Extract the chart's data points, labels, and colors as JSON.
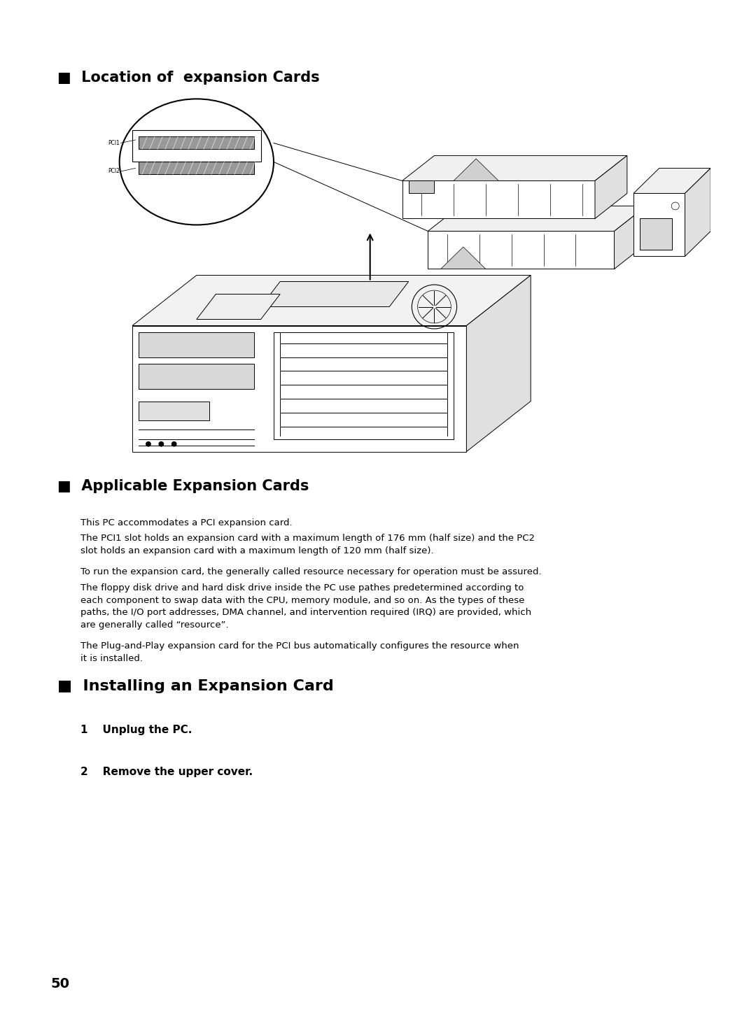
{
  "bg_color": "#ffffff",
  "section1_title": "■  Location of  expansion Cards",
  "section2_title": "■  Applicable Expansion Cards",
  "section3_title": "■  Installing an Expansion Card",
  "section2_body": [
    "This PC accommodates a PCI expansion card.",
    "The PCI1 slot holds an expansion card with a maximum length of 176 mm (half size) and the PC2\nslot holds an expansion card with a maximum length of 120 mm (half size).",
    "To run the expansion card, the generally called resource necessary for operation must be assured.",
    "The floppy disk drive and hard disk drive inside the PC use pathes predetermined according to\neach component to swap data with the CPU, memory module, and so on. As the types of these\npaths, the I/O port addresses, DMA channel, and intervention required (IRQ) are provided, which\nare generally called “resource”.",
    "The Plug-and-Play expansion card for the PCI bus automatically configures the resource when\nit is installed."
  ],
  "section3_steps": [
    "1    Unplug the PC.",
    "2    Remove the upper cover."
  ],
  "page_number": "50",
  "label_pci1": "PCI1",
  "label_pci2": "PCI2",
  "title_fontsize": 15,
  "body_fontsize": 10.5,
  "step_fontsize": 11
}
